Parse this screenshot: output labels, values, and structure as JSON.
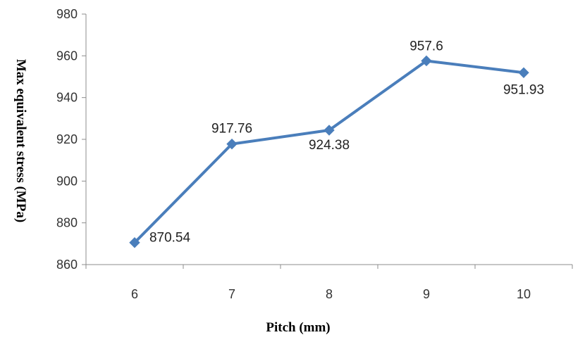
{
  "chart_data": {
    "type": "line",
    "xlabel": "Pitch (mm)",
    "ylabel": "Max equivalent stress (MPa)",
    "categories": [
      "6",
      "7",
      "8",
      "9",
      "10"
    ],
    "series": [
      {
        "values": [
          870.54,
          917.76,
          924.38,
          957.6,
          951.93
        ],
        "labels": [
          "870.54",
          "917.76",
          "924.38",
          "957.6",
          "951.93"
        ],
        "color": "#4a7ebb",
        "marker": "diamond"
      }
    ],
    "ylim": [
      860,
      980
    ],
    "yticks": [
      "860",
      "880",
      "900",
      "920",
      "940",
      "960",
      "980"
    ],
    "grid": false,
    "legend": "none"
  }
}
